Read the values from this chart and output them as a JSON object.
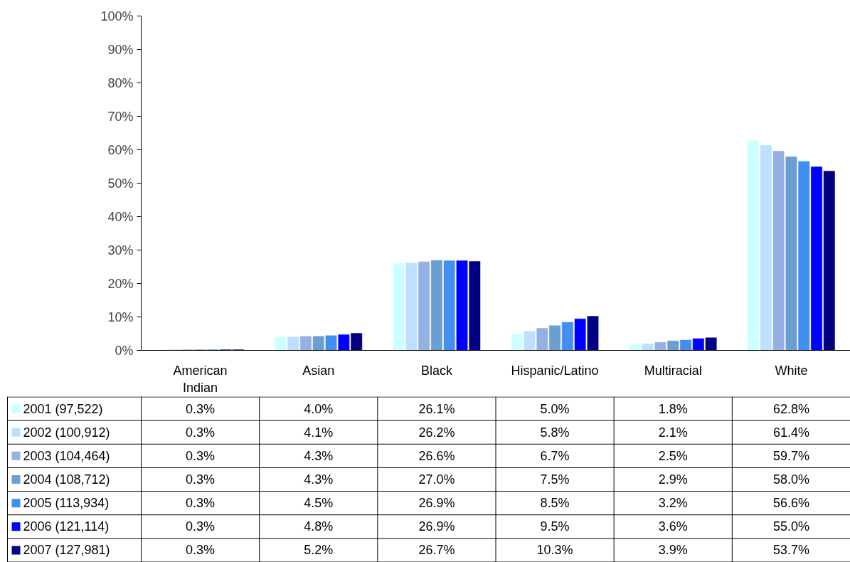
{
  "chart_data": {
    "type": "bar",
    "categories": [
      "American Indian",
      "Asian",
      "Black",
      "Hispanic/Latino",
      "Multiracial",
      "White"
    ],
    "series": [
      {
        "name": "2001 (97,522)",
        "color": "#ccffff",
        "values": [
          0.3,
          4.0,
          26.1,
          5.0,
          1.8,
          62.8
        ],
        "value_labels": [
          "0.3%",
          "4.0%",
          "26.1%",
          "5.0%",
          "1.8%",
          "62.8%"
        ]
      },
      {
        "name": "2002 (100,912)",
        "color": "#bfdfff",
        "values": [
          0.3,
          4.1,
          26.2,
          5.8,
          2.1,
          61.4
        ],
        "value_labels": [
          "0.3%",
          "4.1%",
          "26.2%",
          "5.8%",
          "2.1%",
          "61.4%"
        ]
      },
      {
        "name": "2003 (104,464)",
        "color": "#95b0e3",
        "values": [
          0.3,
          4.3,
          26.6,
          6.7,
          2.5,
          59.7
        ],
        "value_labels": [
          "0.3%",
          "4.3%",
          "26.6%",
          "6.7%",
          "2.5%",
          "59.7%"
        ]
      },
      {
        "name": "2004 (108,712)",
        "color": "#6b9fd1",
        "values": [
          0.3,
          4.3,
          27.0,
          7.5,
          2.9,
          58.0
        ],
        "value_labels": [
          "0.3%",
          "4.3%",
          "27.0%",
          "7.5%",
          "2.9%",
          "58.0%"
        ]
      },
      {
        "name": "2005 (113,934)",
        "color": "#418ff0",
        "values": [
          0.3,
          4.5,
          26.9,
          8.5,
          3.2,
          56.6
        ],
        "value_labels": [
          "0.3%",
          "4.5%",
          "26.9%",
          "8.5%",
          "3.2%",
          "56.6%"
        ]
      },
      {
        "name": "2006 (121,114)",
        "color": "#0000ff",
        "values": [
          0.3,
          4.8,
          26.9,
          9.5,
          3.6,
          55.0
        ],
        "value_labels": [
          "0.3%",
          "4.8%",
          "26.9%",
          "9.5%",
          "3.6%",
          "55.0%"
        ]
      },
      {
        "name": "2007 (127,981)",
        "color": "#000080",
        "values": [
          0.3,
          5.2,
          26.7,
          10.3,
          3.9,
          53.7
        ],
        "value_labels": [
          "0.3%",
          "5.2%",
          "26.7%",
          "10.3%",
          "3.9%",
          "53.7%"
        ]
      }
    ],
    "ylim": [
      0,
      100
    ],
    "yticks": [
      {
        "value": 0,
        "label": "0%"
      },
      {
        "value": 10,
        "label": "10%"
      },
      {
        "value": 20,
        "label": "20%"
      },
      {
        "value": 30,
        "label": "30%"
      },
      {
        "value": 40,
        "label": "40%"
      },
      {
        "value": 50,
        "label": "50%"
      },
      {
        "value": 60,
        "label": "60%"
      },
      {
        "value": 70,
        "label": "70%"
      },
      {
        "value": 80,
        "label": "80%"
      },
      {
        "value": 90,
        "label": "90%"
      },
      {
        "value": 100,
        "label": "100%"
      }
    ],
    "grid": false,
    "legend": "bottom"
  }
}
